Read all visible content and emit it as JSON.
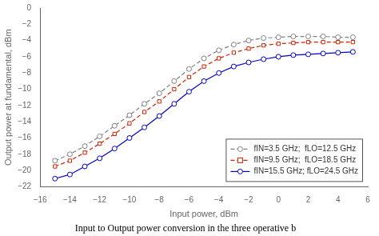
{
  "chart_data": {
    "type": "line",
    "xlabel": "Input power, dBm",
    "ylabel": "Output power at fundamental, dBm",
    "caption": "Input to Output power conversion in the three operative b",
    "xlim": [
      -16,
      6
    ],
    "ylim": [
      -22,
      0
    ],
    "xticks": [
      {
        "value": -16,
        "label": "−16"
      },
      {
        "value": -14,
        "label": "−14"
      },
      {
        "value": -12,
        "label": "−12"
      },
      {
        "value": -10,
        "label": "−10"
      },
      {
        "value": -8,
        "label": "−8"
      },
      {
        "value": -6,
        "label": "−6"
      },
      {
        "value": -4,
        "label": "−4"
      },
      {
        "value": -2,
        "label": "−2"
      },
      0,
      2,
      4,
      6
    ],
    "yticks": [
      0,
      {
        "value": -2,
        "label": "−2"
      },
      {
        "value": -4,
        "label": "−4"
      },
      {
        "value": -6,
        "label": "−6"
      },
      {
        "value": -8,
        "label": "−8"
      },
      {
        "value": -10,
        "label": "−10"
      },
      {
        "value": -12,
        "label": "−12"
      },
      {
        "value": -14,
        "label": "−14"
      },
      {
        "value": -16,
        "label": "−16"
      },
      {
        "value": -18,
        "label": "−18"
      },
      {
        "value": -20,
        "label": "−20"
      },
      {
        "value": -22,
        "label": "−22"
      }
    ],
    "grid": false,
    "legend": "lower right",
    "x": [
      -15,
      -14,
      -13,
      -12,
      -11,
      -10,
      -9,
      -8,
      -7,
      -6,
      -5,
      -4,
      -3,
      -2,
      -1,
      0,
      1,
      2,
      3,
      4,
      5
    ],
    "series": [
      {
        "name": "fIN=3.5 GHz;  fLO=12.5 GHz",
        "color": "#7f7f7f",
        "marker": "circle",
        "line_style": "dashed",
        "values": [
          -18.8,
          -18.0,
          -17.0,
          -15.8,
          -14.5,
          -13.2,
          -11.8,
          -10.5,
          -9.0,
          -7.5,
          -6.2,
          -5.2,
          -4.5,
          -4.0,
          -3.7,
          -3.6,
          -3.5,
          -3.5,
          -3.5,
          -3.6,
          -3.6
        ]
      },
      {
        "name": "fIN=9.5 GHz;  fLO=18.5 GHz",
        "color": "#cc2200",
        "marker": "square",
        "line_style": "dashed",
        "values": [
          -19.5,
          -18.8,
          -17.8,
          -16.7,
          -15.5,
          -14.2,
          -12.8,
          -11.5,
          -10.0,
          -8.5,
          -7.2,
          -6.2,
          -5.5,
          -5.0,
          -4.6,
          -4.4,
          -4.3,
          -4.2,
          -4.2,
          -4.2,
          -4.2
        ]
      },
      {
        "name": "fIN=15.5 GHz; fLO=24.5 GHz",
        "color": "#0000cc",
        "marker": "circle",
        "line_style": "solid",
        "values": [
          -21.0,
          -20.5,
          -19.5,
          -18.5,
          -17.3,
          -16.0,
          -14.7,
          -13.3,
          -11.8,
          -10.3,
          -9.0,
          -8.0,
          -7.2,
          -6.7,
          -6.3,
          -6.0,
          -5.8,
          -5.7,
          -5.6,
          -5.5,
          -5.4
        ]
      }
    ]
  }
}
